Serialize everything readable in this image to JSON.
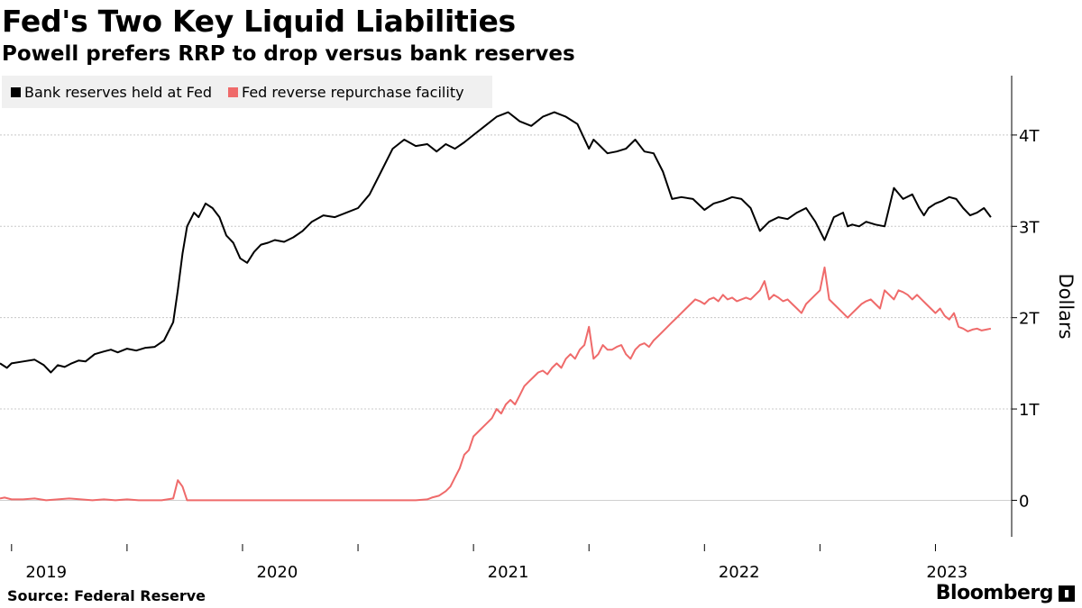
{
  "chart_data": {
    "type": "line",
    "title": "Fed's Two Key Liquid Liabilities",
    "subtitle": "Powell prefers RRP to drop versus bank reserves",
    "ylabel": "Dollars",
    "ylim": [
      -0.4,
      4.65
    ],
    "y_ticks": [
      0,
      1,
      2,
      3,
      4
    ],
    "y_tick_labels": [
      "0",
      "1T",
      "2T",
      "3T",
      "4T"
    ],
    "xlim": [
      2018.95,
      2023.33
    ],
    "x_ticks": [
      2019.0,
      2019.5,
      2020.0,
      2020.5,
      2021.0,
      2021.5,
      2022.0,
      2022.5,
      2023.0
    ],
    "x_tick_labels": [
      "2019",
      "",
      "2020",
      "",
      "2021",
      "",
      "2022",
      "",
      "2023"
    ],
    "x_label_positions": [
      2019.15,
      2020.15,
      2021.15,
      2022.15,
      2023.05
    ],
    "legend_position": "top-left",
    "series": [
      {
        "name": "Bank reserves held at Fed",
        "color": "#000000",
        "x": [
          2018.95,
          2018.98,
          2019.0,
          2019.05,
          2019.1,
          2019.14,
          2019.17,
          2019.2,
          2019.23,
          2019.26,
          2019.29,
          2019.32,
          2019.36,
          2019.4,
          2019.43,
          2019.46,
          2019.5,
          2019.54,
          2019.58,
          2019.62,
          2019.66,
          2019.7,
          2019.72,
          2019.74,
          2019.76,
          2019.79,
          2019.81,
          2019.84,
          2019.87,
          2019.9,
          2019.93,
          2019.96,
          2019.99,
          2020.02,
          2020.05,
          2020.08,
          2020.11,
          2020.14,
          2020.18,
          2020.22,
          2020.26,
          2020.3,
          2020.35,
          2020.4,
          2020.45,
          2020.5,
          2020.55,
          2020.6,
          2020.65,
          2020.7,
          2020.75,
          2020.8,
          2020.84,
          2020.88,
          2020.92,
          2020.96,
          2021.0,
          2021.05,
          2021.1,
          2021.15,
          2021.2,
          2021.25,
          2021.3,
          2021.35,
          2021.4,
          2021.45,
          2021.5,
          2021.52,
          2021.54,
          2021.58,
          2021.62,
          2021.66,
          2021.7,
          2021.74,
          2021.78,
          2021.82,
          2021.86,
          2021.9,
          2021.95,
          2022.0,
          2022.04,
          2022.08,
          2022.12,
          2022.16,
          2022.2,
          2022.24,
          2022.28,
          2022.32,
          2022.36,
          2022.4,
          2022.44,
          2022.48,
          2022.52,
          2022.56,
          2022.6,
          2022.62,
          2022.64,
          2022.67,
          2022.7,
          2022.74,
          2022.78,
          2022.82,
          2022.86,
          2022.9,
          2022.93,
          2022.95,
          2022.97,
          2023.0,
          2023.03,
          2023.06,
          2023.09,
          2023.12,
          2023.15,
          2023.18,
          2023.21,
          2023.24
        ],
        "values": [
          1.5,
          1.45,
          1.5,
          1.52,
          1.54,
          1.48,
          1.4,
          1.48,
          1.46,
          1.5,
          1.53,
          1.52,
          1.6,
          1.63,
          1.65,
          1.62,
          1.66,
          1.64,
          1.67,
          1.68,
          1.75,
          1.95,
          2.3,
          2.7,
          3.0,
          3.15,
          3.1,
          3.25,
          3.2,
          3.1,
          2.9,
          2.82,
          2.65,
          2.6,
          2.72,
          2.8,
          2.82,
          2.85,
          2.83,
          2.88,
          2.95,
          3.05,
          3.12,
          3.1,
          3.15,
          3.2,
          3.35,
          3.6,
          3.85,
          3.95,
          3.88,
          3.9,
          3.82,
          3.9,
          3.85,
          3.92,
          4.0,
          4.1,
          4.2,
          4.25,
          4.15,
          4.1,
          4.2,
          4.25,
          4.2,
          4.12,
          3.85,
          3.95,
          3.9,
          3.8,
          3.82,
          3.85,
          3.95,
          3.82,
          3.8,
          3.6,
          3.3,
          3.32,
          3.3,
          3.18,
          3.25,
          3.28,
          3.32,
          3.3,
          3.2,
          2.95,
          3.05,
          3.1,
          3.08,
          3.15,
          3.2,
          3.05,
          2.85,
          3.1,
          3.15,
          3.0,
          3.02,
          3.0,
          3.05,
          3.02,
          3.0,
          3.42,
          3.3,
          3.35,
          3.2,
          3.12,
          3.2,
          3.25,
          3.28,
          3.32,
          3.3,
          3.2,
          3.12,
          3.15,
          3.2,
          3.1
        ]
      },
      {
        "name": "Fed reverse repurchase facility",
        "color": "#ef6a6a",
        "x": [
          2018.95,
          2018.97,
          2019.0,
          2019.05,
          2019.1,
          2019.15,
          2019.2,
          2019.25,
          2019.3,
          2019.35,
          2019.4,
          2019.45,
          2019.5,
          2019.55,
          2019.6,
          2019.65,
          2019.7,
          2019.72,
          2019.74,
          2019.76,
          2019.8,
          2019.9,
          2020.0,
          2020.2,
          2020.4,
          2020.6,
          2020.7,
          2020.75,
          2020.8,
          2020.82,
          2020.85,
          2020.88,
          2020.9,
          2020.92,
          2020.94,
          2020.96,
          2020.98,
          2021.0,
          2021.02,
          2021.04,
          2021.06,
          2021.08,
          2021.1,
          2021.12,
          2021.14,
          2021.16,
          2021.18,
          2021.2,
          2021.22,
          2021.24,
          2021.26,
          2021.28,
          2021.3,
          2021.32,
          2021.34,
          2021.36,
          2021.38,
          2021.4,
          2021.42,
          2021.44,
          2021.46,
          2021.48,
          2021.5,
          2021.52,
          2021.54,
          2021.56,
          2021.58,
          2021.6,
          2021.62,
          2021.64,
          2021.66,
          2021.68,
          2021.7,
          2021.72,
          2021.74,
          2021.76,
          2021.78,
          2021.8,
          2021.82,
          2021.84,
          2021.86,
          2021.88,
          2021.9,
          2021.92,
          2021.94,
          2021.96,
          2021.98,
          2022.0,
          2022.02,
          2022.04,
          2022.06,
          2022.08,
          2022.1,
          2022.12,
          2022.14,
          2022.16,
          2022.18,
          2022.2,
          2022.22,
          2022.24,
          2022.26,
          2022.28,
          2022.3,
          2022.32,
          2022.34,
          2022.36,
          2022.38,
          2022.4,
          2022.42,
          2022.44,
          2022.46,
          2022.48,
          2022.5,
          2022.52,
          2022.54,
          2022.56,
          2022.58,
          2022.6,
          2022.62,
          2022.64,
          2022.66,
          2022.68,
          2022.7,
          2022.72,
          2022.74,
          2022.76,
          2022.78,
          2022.8,
          2022.82,
          2022.84,
          2022.86,
          2022.88,
          2022.9,
          2022.92,
          2022.94,
          2022.96,
          2022.98,
          2023.0,
          2023.02,
          2023.04,
          2023.06,
          2023.08,
          2023.1,
          2023.12,
          2023.14,
          2023.16,
          2023.18,
          2023.2,
          2023.22,
          2023.24
        ],
        "values": [
          0.02,
          0.03,
          0.01,
          0.01,
          0.02,
          0.0,
          0.01,
          0.02,
          0.01,
          0.0,
          0.01,
          0.0,
          0.01,
          0.0,
          0.0,
          0.0,
          0.02,
          0.22,
          0.15,
          0.0,
          0.0,
          0.0,
          0.0,
          0.0,
          0.0,
          0.0,
          0.0,
          0.0,
          0.01,
          0.03,
          0.05,
          0.1,
          0.15,
          0.25,
          0.35,
          0.5,
          0.55,
          0.7,
          0.75,
          0.8,
          0.85,
          0.9,
          1.0,
          0.95,
          1.05,
          1.1,
          1.05,
          1.15,
          1.25,
          1.3,
          1.35,
          1.4,
          1.42,
          1.38,
          1.45,
          1.5,
          1.45,
          1.55,
          1.6,
          1.55,
          1.65,
          1.7,
          1.9,
          1.55,
          1.6,
          1.7,
          1.65,
          1.65,
          1.68,
          1.7,
          1.6,
          1.55,
          1.65,
          1.7,
          1.72,
          1.68,
          1.75,
          1.8,
          1.85,
          1.9,
          1.95,
          2.0,
          2.05,
          2.1,
          2.15,
          2.2,
          2.18,
          2.15,
          2.2,
          2.22,
          2.18,
          2.25,
          2.2,
          2.22,
          2.18,
          2.2,
          2.22,
          2.2,
          2.25,
          2.3,
          2.4,
          2.2,
          2.25,
          2.22,
          2.18,
          2.2,
          2.15,
          2.1,
          2.05,
          2.15,
          2.2,
          2.25,
          2.3,
          2.55,
          2.2,
          2.15,
          2.1,
          2.05,
          2.0,
          2.05,
          2.1,
          2.15,
          2.18,
          2.2,
          2.15,
          2.1,
          2.3,
          2.25,
          2.2,
          2.3,
          2.28,
          2.25,
          2.2,
          2.25,
          2.2,
          2.15,
          2.1,
          2.05,
          2.1,
          2.02,
          1.98,
          2.05,
          1.9,
          1.88,
          1.85,
          1.87,
          1.88,
          1.86,
          1.87,
          1.88
        ]
      }
    ]
  },
  "source_text": "Source: Federal Reserve",
  "brand": "Bloomberg"
}
